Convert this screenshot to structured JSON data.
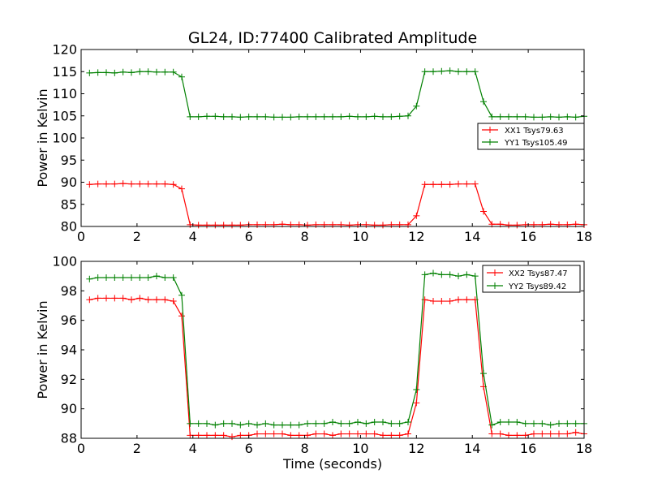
{
  "chart_data": [
    {
      "type": "line",
      "title": "GL24, ID:77400 Calibrated Amplitude",
      "xlabel": "",
      "ylabel": "Power in Kelvin",
      "xlim": [
        0,
        18
      ],
      "ylim": [
        80,
        120
      ],
      "xticks": [
        "0",
        "2",
        "4",
        "6",
        "8",
        "10",
        "12",
        "14",
        "16",
        "18"
      ],
      "yticks": [
        "80",
        "85",
        "90",
        "95",
        "100",
        "105",
        "110",
        "115",
        "120"
      ],
      "grid": false,
      "legend_position": "center-right",
      "series": [
        {
          "name": "XX1 Tsys79.63",
          "color": "#ff0000",
          "x": [
            0.3,
            0.6,
            0.9,
            1.2,
            1.5,
            1.8,
            2.1,
            2.4,
            2.7,
            3.0,
            3.3,
            3.6,
            3.9,
            4.2,
            4.5,
            4.8,
            5.1,
            5.4,
            5.7,
            6.0,
            6.3,
            6.6,
            6.9,
            7.2,
            7.5,
            7.8,
            8.1,
            8.4,
            8.7,
            9.0,
            9.3,
            9.6,
            9.9,
            10.2,
            10.5,
            10.8,
            11.1,
            11.4,
            11.7,
            12.0,
            12.3,
            12.6,
            12.9,
            13.2,
            13.5,
            13.8,
            14.1,
            14.4,
            14.7,
            15.0,
            15.3,
            15.6,
            15.9,
            16.2,
            16.5,
            16.8,
            17.1,
            17.4,
            17.7,
            18.0
          ],
          "y": [
            89.5,
            89.6,
            89.6,
            89.6,
            89.7,
            89.6,
            89.6,
            89.6,
            89.6,
            89.6,
            89.5,
            88.5,
            80.4,
            80.3,
            80.3,
            80.3,
            80.3,
            80.3,
            80.3,
            80.4,
            80.4,
            80.4,
            80.4,
            80.5,
            80.4,
            80.4,
            80.3,
            80.4,
            80.4,
            80.4,
            80.4,
            80.3,
            80.4,
            80.4,
            80.3,
            80.3,
            80.4,
            80.4,
            80.4,
            82.4,
            89.5,
            89.5,
            89.5,
            89.5,
            89.6,
            89.6,
            89.6,
            83.4,
            80.5,
            80.5,
            80.3,
            80.3,
            80.4,
            80.4,
            80.4,
            80.5,
            80.4,
            80.4,
            80.5,
            80.4
          ]
        },
        {
          "name": "YY1 Tsys105.49",
          "color": "#008000",
          "x": [
            0.3,
            0.6,
            0.9,
            1.2,
            1.5,
            1.8,
            2.1,
            2.4,
            2.7,
            3.0,
            3.3,
            3.6,
            3.9,
            4.2,
            4.5,
            4.8,
            5.1,
            5.4,
            5.7,
            6.0,
            6.3,
            6.6,
            6.9,
            7.2,
            7.5,
            7.8,
            8.1,
            8.4,
            8.7,
            9.0,
            9.3,
            9.6,
            9.9,
            10.2,
            10.5,
            10.8,
            11.1,
            11.4,
            11.7,
            12.0,
            12.3,
            12.6,
            12.9,
            13.2,
            13.5,
            13.8,
            14.1,
            14.4,
            14.7,
            15.0,
            15.3,
            15.6,
            15.9,
            16.2,
            16.5,
            16.8,
            17.1,
            17.4,
            17.7,
            18.0
          ],
          "y": [
            114.7,
            114.8,
            114.8,
            114.7,
            114.9,
            114.8,
            115.0,
            115.0,
            114.9,
            114.9,
            114.9,
            113.8,
            104.8,
            104.8,
            104.9,
            104.9,
            104.8,
            104.8,
            104.7,
            104.8,
            104.8,
            104.8,
            104.7,
            104.7,
            104.7,
            104.8,
            104.8,
            104.8,
            104.8,
            104.8,
            104.8,
            104.9,
            104.8,
            104.8,
            104.9,
            104.8,
            104.8,
            104.9,
            105.0,
            107.2,
            115.0,
            115.0,
            115.1,
            115.2,
            115.0,
            115.0,
            115.0,
            108.2,
            104.8,
            104.8,
            104.8,
            104.8,
            104.8,
            104.7,
            104.7,
            104.8,
            104.7,
            104.8,
            104.7,
            104.9
          ]
        }
      ]
    },
    {
      "type": "line",
      "title": "",
      "xlabel": "Time (seconds)",
      "ylabel": "Power in Kelvin",
      "xlim": [
        0,
        18
      ],
      "ylim": [
        88,
        100
      ],
      "xticks": [
        "0",
        "2",
        "4",
        "6",
        "8",
        "10",
        "12",
        "14",
        "16",
        "18"
      ],
      "yticks": [
        "88",
        "90",
        "92",
        "94",
        "96",
        "98",
        "100"
      ],
      "grid": false,
      "legend_position": "top-right",
      "series": [
        {
          "name": "XX2 Tsys87.47",
          "color": "#ff0000",
          "x": [
            0.3,
            0.6,
            0.9,
            1.2,
            1.5,
            1.8,
            2.1,
            2.4,
            2.7,
            3.0,
            3.3,
            3.6,
            3.9,
            4.2,
            4.5,
            4.8,
            5.1,
            5.4,
            5.7,
            6.0,
            6.3,
            6.6,
            6.9,
            7.2,
            7.5,
            7.8,
            8.1,
            8.4,
            8.7,
            9.0,
            9.3,
            9.6,
            9.9,
            10.2,
            10.5,
            10.8,
            11.1,
            11.4,
            11.7,
            12.0,
            12.3,
            12.6,
            12.9,
            13.2,
            13.5,
            13.8,
            14.1,
            14.4,
            14.7,
            15.0,
            15.3,
            15.6,
            15.9,
            16.2,
            16.5,
            16.8,
            17.1,
            17.4,
            17.7,
            18.0
          ],
          "y": [
            97.4,
            97.5,
            97.5,
            97.5,
            97.5,
            97.4,
            97.5,
            97.4,
            97.4,
            97.4,
            97.3,
            96.3,
            88.2,
            88.2,
            88.2,
            88.2,
            88.2,
            88.1,
            88.2,
            88.2,
            88.3,
            88.3,
            88.3,
            88.3,
            88.2,
            88.2,
            88.2,
            88.3,
            88.3,
            88.2,
            88.3,
            88.3,
            88.3,
            88.3,
            88.3,
            88.2,
            88.2,
            88.2,
            88.3,
            90.4,
            97.4,
            97.3,
            97.3,
            97.3,
            97.4,
            97.4,
            97.4,
            91.5,
            88.3,
            88.3,
            88.2,
            88.2,
            88.2,
            88.3,
            88.3,
            88.3,
            88.3,
            88.3,
            88.4,
            88.3
          ]
        },
        {
          "name": "YY2 Tsys89.42",
          "color": "#008000",
          "x": [
            0.3,
            0.6,
            0.9,
            1.2,
            1.5,
            1.8,
            2.1,
            2.4,
            2.7,
            3.0,
            3.3,
            3.6,
            3.9,
            4.2,
            4.5,
            4.8,
            5.1,
            5.4,
            5.7,
            6.0,
            6.3,
            6.6,
            6.9,
            7.2,
            7.5,
            7.8,
            8.1,
            8.4,
            8.7,
            9.0,
            9.3,
            9.6,
            9.9,
            10.2,
            10.5,
            10.8,
            11.1,
            11.4,
            11.7,
            12.0,
            12.3,
            12.6,
            12.9,
            13.2,
            13.5,
            13.8,
            14.1,
            14.4,
            14.7,
            15.0,
            15.3,
            15.6,
            15.9,
            16.2,
            16.5,
            16.8,
            17.1,
            17.4,
            17.7,
            18.0
          ],
          "y": [
            98.8,
            98.9,
            98.9,
            98.9,
            98.9,
            98.9,
            98.9,
            98.9,
            99.0,
            98.9,
            98.9,
            97.7,
            89.0,
            89.0,
            89.0,
            88.9,
            89.0,
            89.0,
            88.9,
            89.0,
            88.9,
            89.0,
            88.9,
            88.9,
            88.9,
            88.9,
            89.0,
            89.0,
            89.0,
            89.1,
            89.0,
            89.0,
            89.1,
            89.0,
            89.1,
            89.1,
            89.0,
            89.0,
            89.1,
            91.3,
            99.1,
            99.2,
            99.1,
            99.1,
            99.0,
            99.1,
            99.0,
            92.4,
            88.9,
            89.1,
            89.1,
            89.1,
            89.0,
            89.0,
            89.0,
            88.9,
            89.0,
            89.0,
            89.0,
            89.0
          ]
        }
      ]
    }
  ]
}
